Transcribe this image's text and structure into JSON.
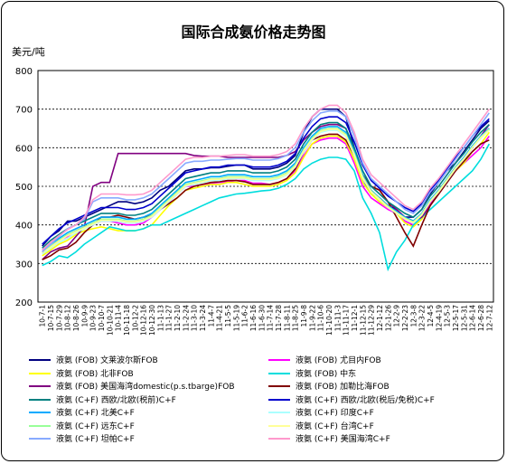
{
  "chart_data": {
    "type": "line",
    "title": "国际合成氨价格走势图",
    "ylabel": "美元/吨",
    "ylim": [
      200,
      800
    ],
    "yticks": [
      200,
      300,
      400,
      500,
      600,
      700,
      800
    ],
    "grid": "horizontal dashed",
    "legend_position": "bottom",
    "x": [
      "10-7-1",
      "10-7-15",
      "10-7-29",
      "10-8-12",
      "10-8-26",
      "10-9-9",
      "10-9-23",
      "10-10-7",
      "10-10-21",
      "10-11-4",
      "10-11-18",
      "10-12-2",
      "10-12-16",
      "10-12-30",
      "11-1-13",
      "11-1-27",
      "11-2-10",
      "11-2-24",
      "11-3-10",
      "11-3-24",
      "11-4-7",
      "11-4-21",
      "11-5-5",
      "11-5-19",
      "11-6-2",
      "11-6-16",
      "11-6-30",
      "11-7-14",
      "11-7-28",
      "11-8-11",
      "11-8-25",
      "11-9-8",
      "11-9-22",
      "11-10-6",
      "11-10-20",
      "11-11-3",
      "11-11-17",
      "11-12-1",
      "11-12-15",
      "11-12-29",
      "12-1-12",
      "12-1-26",
      "12-2-9",
      "12-2-23",
      "12-3-8",
      "12-3-22",
      "12-4-5",
      "12-4-19",
      "12-5-3",
      "12-5-17",
      "12-5-31",
      "12-6-14",
      "12-6-28",
      "12-7-12"
    ],
    "series": [
      {
        "name": "液氨 (FOB) 文莱波尔斯FOB",
        "color": "#000080",
        "values": [
          345,
          370,
          385,
          410,
          410,
          420,
          430,
          440,
          450,
          460,
          460,
          455,
          460,
          470,
          490,
          500,
          520,
          540,
          545,
          545,
          548,
          548,
          552,
          555,
          555,
          545,
          545,
          545,
          550,
          560,
          580,
          640,
          680,
          700,
          700,
          700,
          680,
          600,
          520,
          480,
          470,
          450,
          440,
          420,
          420,
          440,
          480,
          510,
          540,
          560,
          590,
          620,
          650,
          670
        ]
      },
      {
        "name": "液氨 (FOB) 尤目内FOB",
        "color": "#ff00ff",
        "values": [
          330,
          345,
          360,
          370,
          385,
          395,
          400,
          410,
          410,
          405,
          400,
          400,
          405,
          420,
          440,
          460,
          480,
          500,
          500,
          505,
          508,
          510,
          512,
          515,
          515,
          508,
          508,
          505,
          510,
          520,
          540,
          580,
          610,
          620,
          625,
          625,
          610,
          560,
          500,
          470,
          455,
          440,
          430,
          410,
          400,
          420,
          455,
          480,
          510,
          540,
          560,
          580,
          600,
          630
        ]
      },
      {
        "name": "液氨 (FOB) 北非FOB",
        "color": "#ffff00",
        "values": [
          320,
          335,
          350,
          360,
          375,
          385,
          390,
          395,
          390,
          385,
          385,
          385,
          390,
          400,
          425,
          450,
          470,
          490,
          495,
          500,
          505,
          505,
          510,
          510,
          505,
          500,
          500,
          500,
          505,
          515,
          535,
          575,
          610,
          625,
          630,
          630,
          615,
          570,
          510,
          480,
          460,
          445,
          430,
          405,
          395,
          415,
          450,
          480,
          510,
          540,
          560,
          590,
          610,
          640
        ]
      },
      {
        "name": "液氨 (FOB) 中东",
        "color": "#00dddd",
        "values": [
          295,
          305,
          320,
          315,
          330,
          350,
          365,
          380,
          395,
          390,
          385,
          385,
          390,
          400,
          400,
          410,
          420,
          430,
          440,
          450,
          460,
          470,
          475,
          480,
          482,
          485,
          488,
          490,
          495,
          505,
          520,
          545,
          560,
          570,
          575,
          575,
          570,
          540,
          470,
          430,
          380,
          285,
          330,
          360,
          400,
          420,
          440,
          460,
          480,
          500,
          520,
          540,
          570,
          610
        ]
      },
      {
        "name": "液氨 (FOB) 美国海湾domestic(p.s.tbarge)FOB",
        "color": "#800080",
        "values": [
          310,
          330,
          340,
          345,
          370,
          395,
          500,
          510,
          510,
          585,
          585,
          585,
          585,
          585,
          585,
          585,
          585,
          585,
          580,
          578,
          578,
          578,
          575,
          575,
          575,
          575,
          575,
          575,
          575,
          580,
          590,
          620,
          640,
          655,
          660,
          660,
          650,
          590,
          520,
          500,
          490,
          460,
          440,
          420,
          410,
          420,
          450,
          480,
          510,
          540,
          570,
          600,
          630,
          660
        ]
      },
      {
        "name": "液氨 (FOB) 加勒比海FOB",
        "color": "#800000",
        "values": [
          310,
          320,
          335,
          340,
          355,
          380,
          400,
          420,
          420,
          425,
          420,
          415,
          420,
          425,
          440,
          455,
          470,
          490,
          500,
          505,
          510,
          512,
          515,
          515,
          512,
          505,
          505,
          505,
          510,
          520,
          545,
          590,
          620,
          630,
          635,
          635,
          620,
          580,
          530,
          500,
          490,
          460,
          420,
          380,
          345,
          400,
          450,
          480,
          510,
          540,
          565,
          590,
          610,
          620
        ]
      },
      {
        "name": "液氨 (C+F) 西欧/北欧(税前)C+F",
        "color": "#008080",
        "values": [
          340,
          360,
          375,
          390,
          400,
          410,
          420,
          430,
          430,
          430,
          425,
          425,
          430,
          440,
          460,
          480,
          500,
          520,
          525,
          530,
          535,
          535,
          540,
          540,
          540,
          535,
          535,
          535,
          540,
          550,
          570,
          610,
          640,
          660,
          665,
          665,
          650,
          600,
          540,
          500,
          480,
          460,
          445,
          430,
          420,
          440,
          475,
          500,
          530,
          560,
          585,
          615,
          640,
          660
        ]
      },
      {
        "name": "液氨 (C+F) 西欧/北欧(税后/免税)C+F",
        "color": "#0000cd",
        "values": [
          350,
          370,
          390,
          405,
          415,
          425,
          435,
          445,
          445,
          445,
          440,
          440,
          445,
          455,
          475,
          495,
          515,
          535,
          540,
          545,
          550,
          550,
          555,
          555,
          555,
          550,
          550,
          550,
          555,
          565,
          585,
          625,
          655,
          675,
          680,
          680,
          665,
          615,
          555,
          515,
          495,
          475,
          460,
          445,
          435,
          455,
          490,
          515,
          545,
          575,
          600,
          630,
          655,
          675
        ]
      },
      {
        "name": "液氨 (C+F) 北美C+F",
        "color": "#00aaff",
        "values": [
          335,
          350,
          365,
          380,
          390,
          400,
          410,
          420,
          420,
          420,
          415,
          415,
          420,
          430,
          450,
          470,
          490,
          510,
          515,
          520,
          525,
          525,
          530,
          530,
          530,
          525,
          525,
          525,
          530,
          540,
          560,
          600,
          630,
          650,
          655,
          655,
          640,
          590,
          530,
          490,
          470,
          450,
          435,
          420,
          410,
          430,
          465,
          490,
          520,
          550,
          575,
          605,
          630,
          650
        ]
      },
      {
        "name": "液氨 (C+F) 印度C+F",
        "color": "#aaffff",
        "values": [
          325,
          340,
          355,
          365,
          380,
          390,
          400,
          410,
          410,
          410,
          405,
          405,
          410,
          420,
          440,
          460,
          480,
          500,
          505,
          510,
          515,
          515,
          520,
          520,
          520,
          515,
          515,
          515,
          520,
          530,
          550,
          590,
          620,
          640,
          645,
          645,
          630,
          580,
          520,
          485,
          465,
          445,
          430,
          415,
          405,
          425,
          460,
          485,
          515,
          545,
          570,
          600,
          625,
          645
        ]
      },
      {
        "name": "液氨 (C+F) 远东C+F",
        "color": "#99ff99",
        "values": [
          330,
          345,
          360,
          375,
          385,
          395,
          405,
          415,
          415,
          415,
          410,
          410,
          415,
          425,
          445,
          465,
          485,
          505,
          510,
          515,
          520,
          520,
          525,
          525,
          525,
          520,
          520,
          520,
          525,
          535,
          555,
          595,
          625,
          645,
          650,
          650,
          635,
          585,
          525,
          488,
          468,
          448,
          432,
          418,
          408,
          428,
          462,
          488,
          518,
          548,
          572,
          602,
          628,
          648
        ]
      },
      {
        "name": "液氨 (C+F) 台湾C+F",
        "color": "#ffff99",
        "values": [
          328,
          342,
          358,
          372,
          382,
          392,
          402,
          412,
          412,
          412,
          408,
          408,
          412,
          422,
          442,
          462,
          482,
          502,
          508,
          512,
          518,
          518,
          522,
          522,
          522,
          518,
          518,
          518,
          522,
          532,
          552,
          592,
          622,
          642,
          648,
          648,
          632,
          582,
          522,
          486,
          466,
          446,
          431,
          416,
          406,
          426,
          461,
          486,
          516,
          546,
          571,
          601,
          626,
          646
        ]
      },
      {
        "name": "液氨 (C+F) 坦帕C+F",
        "color": "#88aaff",
        "values": [
          330,
          350,
          370,
          390,
          400,
          415,
          460,
          470,
          470,
          470,
          465,
          465,
          470,
          480,
          500,
          520,
          540,
          560,
          565,
          565,
          568,
          568,
          570,
          572,
          572,
          568,
          568,
          568,
          572,
          580,
          600,
          640,
          670,
          690,
          695,
          695,
          680,
          630,
          560,
          520,
          500,
          480,
          460,
          440,
          430,
          450,
          485,
          510,
          540,
          570,
          600,
          630,
          660,
          690
        ]
      },
      {
        "name": "液氨 (C+F) 美国海湾C+F",
        "color": "#ff99cc",
        "values": [
          335,
          355,
          372,
          388,
          400,
          420,
          465,
          480,
          480,
          480,
          478,
          478,
          480,
          490,
          510,
          530,
          550,
          570,
          575,
          575,
          578,
          578,
          580,
          582,
          582,
          578,
          578,
          578,
          582,
          590,
          610,
          650,
          680,
          700,
          710,
          710,
          690,
          640,
          570,
          530,
          510,
          490,
          470,
          450,
          440,
          460,
          495,
          520,
          550,
          580,
          610,
          640,
          670,
          700
        ]
      }
    ]
  }
}
